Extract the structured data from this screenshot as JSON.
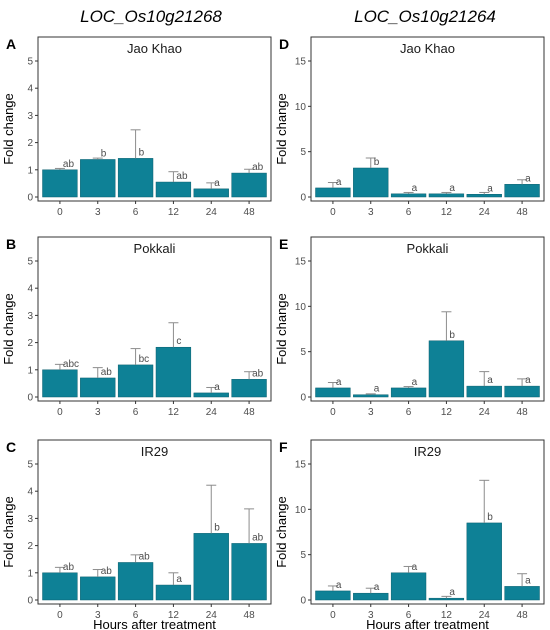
{
  "column_titles": [
    "LOC_Os10g21268",
    "LOC_Os10g21264"
  ],
  "ylabel": "Fold change",
  "xlabel": "Hours after treatment",
  "colors": {
    "bar": "#0e8196",
    "bar_edge": "#0a5f6e",
    "error": "#8c8c8c",
    "frame": "#333333"
  },
  "chart_data": [
    {
      "panel": "A",
      "title": "Jao Khao",
      "type": "bar",
      "categories": [
        "0",
        "3",
        "6",
        "12",
        "24",
        "48"
      ],
      "values": [
        1.0,
        1.38,
        1.42,
        0.55,
        0.3,
        0.88
      ],
      "errors": [
        0.05,
        0.05,
        1.05,
        0.38,
        0.22,
        0.14
      ],
      "letters": [
        "ab",
        "b",
        "b",
        "ab",
        "a",
        "ab"
      ],
      "ylim": [
        0,
        5
      ],
      "yticks": [
        0,
        1,
        2,
        3,
        4,
        5
      ]
    },
    {
      "panel": "D",
      "title": "Jao Khao",
      "type": "bar",
      "categories": [
        "0",
        "3",
        "6",
        "12",
        "24",
        "48"
      ],
      "values": [
        1.0,
        3.2,
        0.35,
        0.35,
        0.3,
        1.4
      ],
      "errors": [
        0.6,
        1.1,
        0.15,
        0.15,
        0.2,
        0.5
      ],
      "letters": [
        "a",
        "b",
        "a",
        "a",
        "a",
        "a"
      ],
      "ylim": [
        0,
        15
      ],
      "yticks": [
        0,
        5,
        10,
        15
      ]
    },
    {
      "panel": "B",
      "title": "Pokkali",
      "type": "bar",
      "categories": [
        "0",
        "3",
        "6",
        "12",
        "24",
        "48"
      ],
      "values": [
        1.0,
        0.7,
        1.18,
        1.83,
        0.15,
        0.65
      ],
      "errors": [
        0.2,
        0.38,
        0.6,
        0.9,
        0.2,
        0.28
      ],
      "letters": [
        "abc",
        "ab",
        "bc",
        "c",
        "a",
        "ab"
      ],
      "ylim": [
        0,
        5
      ],
      "yticks": [
        0,
        1,
        2,
        3,
        4,
        5
      ]
    },
    {
      "panel": "E",
      "title": "Pokkali",
      "type": "bar",
      "categories": [
        "0",
        "3",
        "6",
        "12",
        "24",
        "48"
      ],
      "values": [
        1.0,
        0.25,
        1.0,
        6.2,
        1.2,
        1.2
      ],
      "errors": [
        0.6,
        0.1,
        0.15,
        3.2,
        1.6,
        0.8
      ],
      "letters": [
        "a",
        "a",
        "a",
        "b",
        "a",
        "a"
      ],
      "ylim": [
        0,
        15
      ],
      "yticks": [
        0,
        5,
        10,
        15
      ]
    },
    {
      "panel": "C",
      "title": "IR29",
      "type": "bar",
      "categories": [
        "0",
        "3",
        "6",
        "12",
        "24",
        "48"
      ],
      "values": [
        1.0,
        0.85,
        1.38,
        0.55,
        2.45,
        2.08
      ],
      "errors": [
        0.2,
        0.27,
        0.28,
        0.45,
        1.77,
        1.27
      ],
      "letters": [
        "ab",
        "ab",
        "ab",
        "a",
        "b",
        "ab"
      ],
      "ylim": [
        0,
        5
      ],
      "yticks": [
        0,
        1,
        2,
        3,
        4,
        5
      ]
    },
    {
      "panel": "F",
      "title": "IR29",
      "type": "bar",
      "categories": [
        "0",
        "3",
        "6",
        "12",
        "24",
        "48"
      ],
      "values": [
        1.0,
        0.75,
        3.0,
        0.2,
        8.5,
        1.5
      ],
      "errors": [
        0.55,
        0.55,
        0.7,
        0.2,
        4.7,
        1.4
      ],
      "letters": [
        "a",
        "a",
        "a",
        "a",
        "b",
        "a"
      ],
      "ylim": [
        0,
        15
      ],
      "yticks": [
        0,
        5,
        10,
        15
      ]
    }
  ]
}
